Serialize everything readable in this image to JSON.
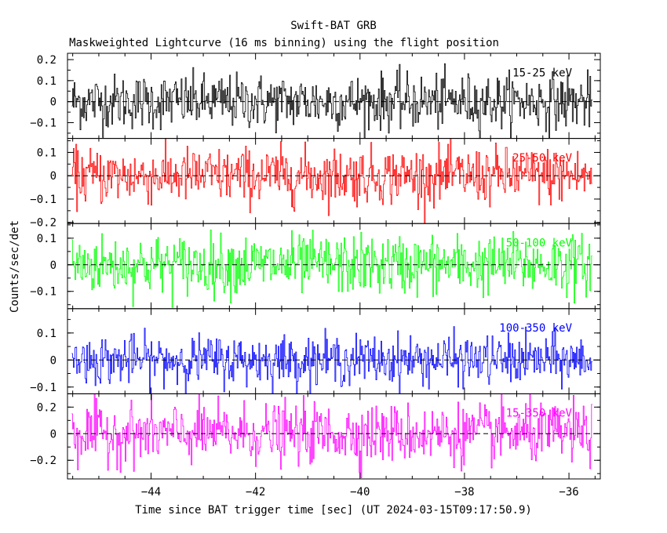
{
  "chart_data": {
    "type": "line",
    "title": "Swift-BAT GRB",
    "subtitle": "Maskweighted Lightcurve (16 ms binning) using the flight position",
    "xlabel": "Time since BAT trigger time [sec] (UT 2024-03-15T09:17:50.9)",
    "ylabel": "Counts/sec/det",
    "xlim": [
      -45.6,
      -35.4
    ],
    "xticks": [
      -44,
      -42,
      -40,
      -38,
      -36
    ],
    "x_start": -45.52,
    "x_end": -35.55,
    "bin_width": 0.016,
    "grid": false,
    "panels": [
      {
        "name": "15-25 keV",
        "color": "#000000",
        "ylim": [
          -0.175,
          0.23
        ],
        "yticks": [
          -0.1,
          0,
          0.1,
          0.2
        ],
        "ytick_labels": [
          "−0.1",
          "0",
          "0.1",
          "0.2"
        ],
        "noise_sigma": 0.065
      },
      {
        "name": "25-50 keV",
        "color": "#ff0000",
        "ylim": [
          -0.205,
          0.16
        ],
        "yticks": [
          -0.2,
          -0.1,
          0,
          0.1
        ],
        "ytick_labels": [
          "−0.2",
          "−0.1",
          "0",
          "0.1"
        ],
        "noise_sigma": 0.06
      },
      {
        "name": "50-100 keV",
        "color": "#00ff00",
        "ylim": [
          -0.165,
          0.155
        ],
        "yticks": [
          -0.1,
          0,
          0.1
        ],
        "ytick_labels": [
          "−0.1",
          "0",
          "0.1"
        ],
        "noise_sigma": 0.055
      },
      {
        "name": "100-350 keV",
        "color": "#0000ff",
        "ylim": [
          -0.125,
          0.19
        ],
        "yticks": [
          -0.1,
          0,
          0.1
        ],
        "ytick_labels": [
          "−0.1",
          "0",
          "0.1"
        ],
        "noise_sigma": 0.045
      },
      {
        "name": "15-350 keV",
        "color": "#ff00ff",
        "ylim": [
          -0.34,
          0.3
        ],
        "yticks": [
          -0.2,
          0,
          0.2
        ],
        "ytick_labels": [
          "−0.2",
          "0",
          "0.2"
        ],
        "noise_sigma": 0.11
      }
    ]
  }
}
